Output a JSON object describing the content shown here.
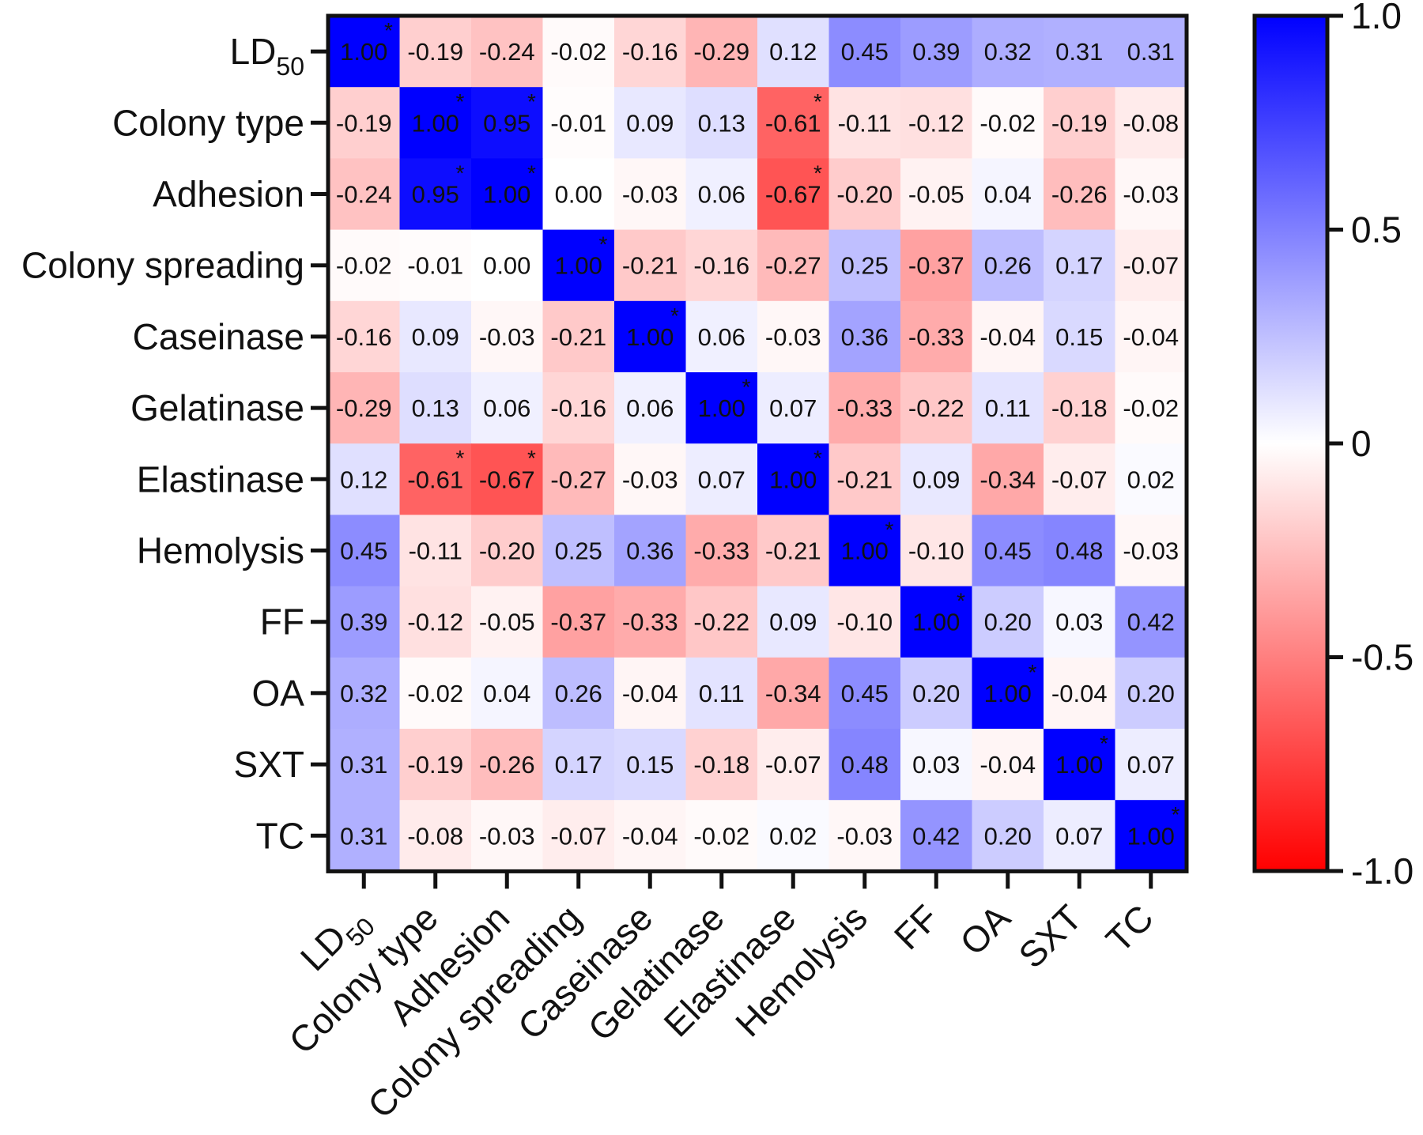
{
  "chart_data": {
    "type": "heatmap",
    "title": "",
    "xlabel": "",
    "ylabel": "",
    "labels": [
      {
        "main": "LD",
        "sub": "50"
      },
      {
        "main": "Colony type",
        "sub": ""
      },
      {
        "main": "Adhesion",
        "sub": ""
      },
      {
        "main": "Colony spreading",
        "sub": ""
      },
      {
        "main": "Caseinase",
        "sub": ""
      },
      {
        "main": "Gelatinase",
        "sub": ""
      },
      {
        "main": "Elastinase",
        "sub": ""
      },
      {
        "main": "Hemolysis",
        "sub": ""
      },
      {
        "main": "FF",
        "sub": ""
      },
      {
        "main": "OA",
        "sub": ""
      },
      {
        "main": "SXT",
        "sub": ""
      },
      {
        "main": "TC",
        "sub": ""
      }
    ],
    "cell_text": [
      [
        "1.00",
        "-0.19",
        "-0.24",
        "-0.02",
        "-0.16",
        "-0.29",
        "0.12",
        "0.45",
        "0.39",
        "0.32",
        "0.31",
        "0.31"
      ],
      [
        "-0.19",
        "1.00",
        "0.95",
        "-0.01",
        "0.09",
        "0.13",
        "-0.61",
        "-0.11",
        "-0.12",
        "-0.02",
        "-0.19",
        "-0.08"
      ],
      [
        "-0.24",
        "0.95",
        "1.00",
        "0.00",
        "-0.03",
        "0.06",
        "-0.67",
        "-0.20",
        "-0.05",
        "0.04",
        "-0.26",
        "-0.03"
      ],
      [
        "-0.02",
        "-0.01",
        "0.00",
        "1.00",
        "-0.21",
        "-0.16",
        "-0.27",
        "0.25",
        "-0.37",
        "0.26",
        "0.17",
        "-0.07"
      ],
      [
        "-0.16",
        "0.09",
        "-0.03",
        "-0.21",
        "1.00",
        "0.06",
        "-0.03",
        "0.36",
        "-0.33",
        "-0.04",
        "0.15",
        "-0.04"
      ],
      [
        "-0.29",
        "0.13",
        "0.06",
        "-0.16",
        "0.06",
        "1.00",
        "0.07",
        "-0.33",
        "-0.22",
        "0.11",
        "-0.18",
        "-0.02"
      ],
      [
        "0.12",
        "-0.61",
        "-0.67",
        "-0.27",
        "-0.03",
        "0.07",
        "1.00",
        "-0.21",
        "0.09",
        "-0.34",
        "-0.07",
        "0.02"
      ],
      [
        "0.45",
        "-0.11",
        "-0.20",
        "0.25",
        "0.36",
        "-0.33",
        "-0.21",
        "1.00",
        "-0.10",
        "0.45",
        "0.48",
        "-0.03"
      ],
      [
        "0.39",
        "-0.12",
        "-0.05",
        "-0.37",
        "-0.33",
        "-0.22",
        "0.09",
        "-0.10",
        "1.00",
        "0.20",
        "0.03",
        "0.42"
      ],
      [
        "0.32",
        "-0.02",
        "0.04",
        "0.26",
        "-0.04",
        "0.11",
        "-0.34",
        "0.45",
        "0.20",
        "1.00",
        "-0.04",
        "0.20"
      ],
      [
        "0.31",
        "-0.19",
        "-0.26",
        "0.17",
        "0.15",
        "-0.18",
        "-0.07",
        "0.48",
        "0.03",
        "-0.04",
        "1.00",
        "0.07"
      ],
      [
        "0.31",
        "-0.08",
        "-0.03",
        "-0.07",
        "-0.04",
        "-0.02",
        "0.02",
        "-0.03",
        "0.42",
        "0.20",
        "0.07",
        "1.00"
      ]
    ],
    "significant": [
      [
        0,
        0
      ],
      [
        1,
        1
      ],
      [
        1,
        2
      ],
      [
        1,
        6
      ],
      [
        2,
        1
      ],
      [
        2,
        2
      ],
      [
        2,
        6
      ],
      [
        3,
        3
      ],
      [
        4,
        4
      ],
      [
        5,
        5
      ],
      [
        6,
        1
      ],
      [
        6,
        2
      ],
      [
        6,
        6
      ],
      [
        7,
        7
      ],
      [
        8,
        8
      ],
      [
        9,
        9
      ],
      [
        10,
        10
      ],
      [
        11,
        11
      ]
    ],
    "significance_marker": "*",
    "colorbar": {
      "range": [
        -1.0,
        1.0
      ],
      "ticks": [
        {
          "value": 1.0,
          "label": "1.0"
        },
        {
          "value": 0.5,
          "label": "0.5"
        },
        {
          "value": 0.0,
          "label": "0"
        },
        {
          "value": -0.5,
          "label": "-0.5"
        },
        {
          "value": -1.0,
          "label": "-1.0"
        }
      ],
      "colors": {
        "positive": "#0000ff",
        "zero": "#ffffff",
        "negative": "#ff0000"
      }
    }
  }
}
